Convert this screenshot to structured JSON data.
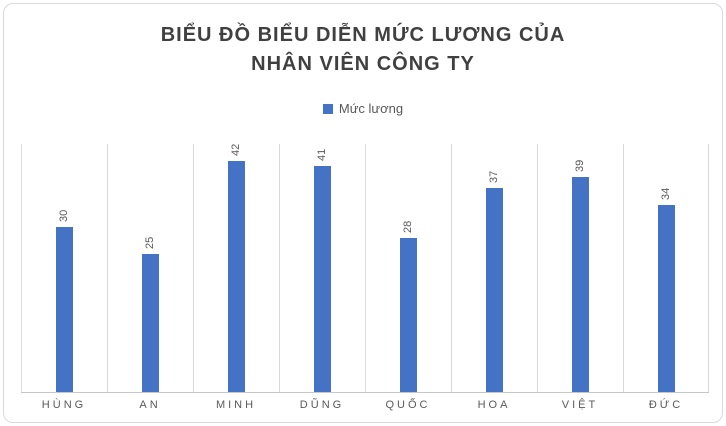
{
  "chart": {
    "title_lines": [
      "BIỂU ĐỒ BIỂU DIỄN MỨC LƯƠNG CỦA",
      "NHÂN VIÊN CÔNG TY"
    ]
  },
  "chart_data": {
    "type": "bar",
    "title": "BIỂU ĐỒ BIỂU DIỄN MỨC LƯƠNG CỦA NHÂN VIÊN CÔNG TY",
    "categories": [
      "HÙNG",
      "AN",
      "MINH",
      "DŨNG",
      "QUỐC",
      "HOA",
      "VIỆT",
      "ĐỨC"
    ],
    "series": [
      {
        "name": "Mức lương",
        "values": [
          30,
          25,
          42,
          41,
          28,
          37,
          39,
          34
        ]
      }
    ],
    "data_labels": [
      30,
      25,
      42,
      41,
      28,
      37,
      39,
      34
    ],
    "data_label_rotation": -90,
    "xlabel": "",
    "ylabel": "",
    "ylim": [
      0,
      45
    ],
    "grid": "vertical-category-gridlines",
    "legend_position": "top",
    "bar_color": "#4472C4",
    "colors": {
      "bar": "#4472C4",
      "title_text": "#404040",
      "label_text": "#595959",
      "gridline": "#D9D9D9",
      "axis_line": "#C6C6C6",
      "chart_border": "#D9D9D9"
    }
  }
}
